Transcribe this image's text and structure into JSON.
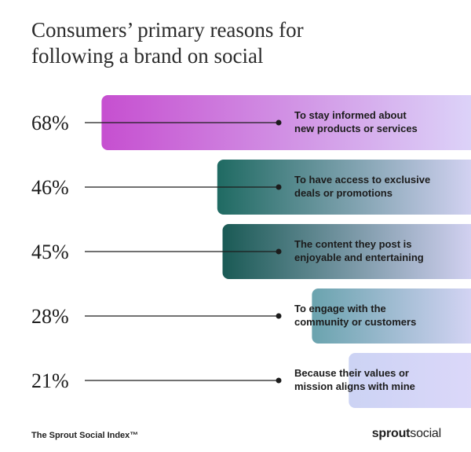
{
  "title": {
    "line1": "Consumers’ primary reasons for",
    "line2": "following a brand on social"
  },
  "chart_data": {
    "type": "bar",
    "orientation": "horizontal",
    "title": "Consumers’ primary reasons for following a brand on social",
    "categories": [
      "To stay informed about new products or services",
      "To have access to exclusive deals or promotions",
      "The content they post is enjoyable and entertaining",
      "To engage with the community or customers",
      "Because their values or mission aligns with mine"
    ],
    "category_lines": [
      [
        "To stay informed about",
        "new products or services"
      ],
      [
        "To have access to exclusive",
        "deals or promotions"
      ],
      [
        "The content they post is",
        "enjoyable and entertaining"
      ],
      [
        "To engage with the",
        "community or customers"
      ],
      [
        "Because their values or",
        "mission aligns with mine"
      ]
    ],
    "values": [
      68,
      46,
      45,
      28,
      21
    ],
    "value_labels": [
      "68%",
      "46%",
      "45%",
      "28%",
      "21%"
    ],
    "unit": "%",
    "xlim": [
      0,
      100
    ],
    "grid": false,
    "legend": "none"
  },
  "colors": {
    "bar_end": "#ddd8fa",
    "bar_starts": [
      "#c64fd0",
      "#1f6a62",
      "#1a5a55",
      "#6aa3ae",
      "#ccd3f4"
    ],
    "line": "#1c1c1c",
    "text": "#1c1c1c"
  },
  "footer": {
    "source": "The Sprout Social Index™",
    "brand_part1": "sprout",
    "brand_part2": "social"
  }
}
